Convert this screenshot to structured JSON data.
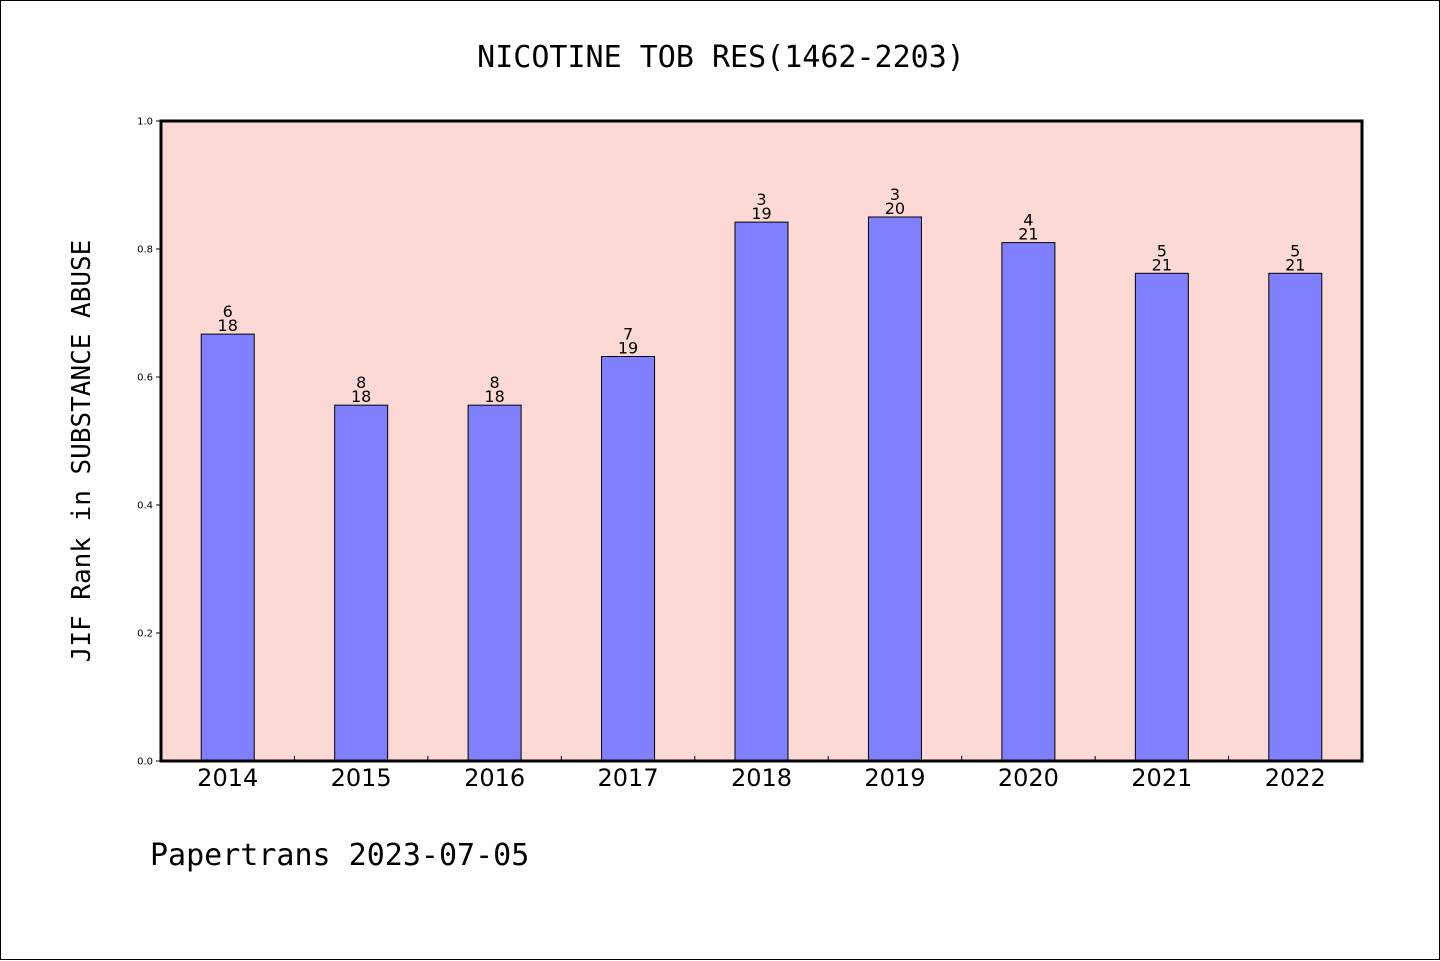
{
  "chart_data": {
    "type": "bar",
    "title": "NICOTINE TOB RES(1462-2203)",
    "ylabel": "JIF Rank in SUBSTANCE ABUSE",
    "xlabel": "",
    "ylim": [
      0,
      1.0
    ],
    "yticks": [
      "0.0",
      "0.2",
      "0.4",
      "0.6",
      "0.8",
      "1.0"
    ],
    "categories": [
      "2014",
      "2015",
      "2016",
      "2017",
      "2018",
      "2019",
      "2020",
      "2021",
      "2022"
    ],
    "values": [
      0.667,
      0.556,
      0.556,
      0.632,
      0.842,
      0.85,
      0.81,
      0.762,
      0.762
    ],
    "rank": [
      "6",
      "8",
      "8",
      "7",
      "3",
      "3",
      "4",
      "5",
      "5"
    ],
    "total": [
      "18",
      "18",
      "18",
      "19",
      "19",
      "20",
      "21",
      "21",
      "21"
    ],
    "grid": false,
    "colors": {
      "plot_background": "#fdd9d6",
      "bar_fill": "#8080ff",
      "bar_stroke": "#000000",
      "axis": "#000000"
    }
  },
  "footer": {
    "text": "Papertrans 2023-07-05"
  }
}
